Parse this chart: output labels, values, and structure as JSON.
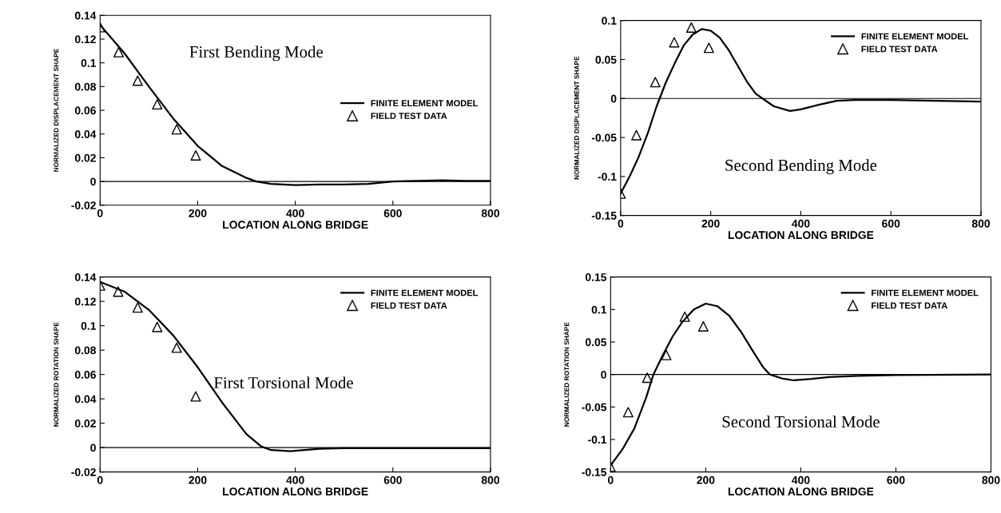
{
  "chart_data": [
    {
      "type": "line",
      "title": "First Bending Mode",
      "xlabel": "LOCATION ALONG BRIDGE",
      "ylabel": "NORMALIZED DISPLACEMENT SHAPE",
      "xlim": [
        0,
        800
      ],
      "xticks": [
        0,
        200,
        400,
        600,
        800
      ],
      "ylim": [
        -0.02,
        0.14
      ],
      "yticks": [
        -0.02,
        0,
        0.02,
        0.04,
        0.06,
        0.08,
        0.1,
        0.12,
        0.14
      ],
      "legend": "center right",
      "grid": false,
      "ref_lines": [
        {
          "axis": "y",
          "value": 0,
          "color": "#000000"
        }
      ],
      "series": [
        {
          "name": "FINITE ELEMENT MODEL",
          "color": "#000000",
          "marker": "none",
          "line_style": "solid",
          "x": [
            0,
            50,
            100,
            150,
            200,
            250,
            300,
            320,
            350,
            400,
            450,
            500,
            550,
            600,
            650,
            700,
            750,
            800
          ],
          "values": [
            0.132,
            0.108,
            0.08,
            0.053,
            0.03,
            0.013,
            0.003,
            0,
            -0.002,
            -0.003,
            -0.0025,
            -0.0025,
            -0.002,
            0,
            0.0005,
            0.001,
            0.0005,
            0.0005
          ]
        },
        {
          "name": "FIELD TEST DATA",
          "type": "scatter",
          "color": "#000000",
          "marker": "triangle",
          "x": [
            0,
            38,
            77,
            117,
            157,
            196
          ],
          "values": [
            0.13,
            0.109,
            0.085,
            0.065,
            0.044,
            0.022
          ]
        }
      ]
    },
    {
      "type": "line",
      "title": "Second Bending Mode",
      "xlabel": "LOCATION ALONG BRIDGE",
      "ylabel": "NORMALIZED DISPLACEMENT SHAPE",
      "xlim": [
        0,
        800
      ],
      "xticks": [
        0,
        200,
        400,
        600,
        800
      ],
      "ylim": [
        -0.15,
        0.1
      ],
      "yticks": [
        -0.15,
        -0.1,
        -0.05,
        0,
        0.05,
        0.1
      ],
      "legend": "top right",
      "grid": false,
      "ref_lines": [
        {
          "axis": "y",
          "value": 0,
          "color": "#000000"
        }
      ],
      "series": [
        {
          "name": "FINITE ELEMENT MODEL",
          "color": "#000000",
          "marker": "none",
          "line_style": "solid",
          "x": [
            0,
            20,
            40,
            60,
            80,
            100,
            120,
            140,
            160,
            180,
            200,
            220,
            240,
            260,
            280,
            300,
            315,
            340,
            376,
            400,
            440,
            480,
            520,
            600,
            700,
            800
          ],
          "values": [
            -0.122,
            -0.1,
            -0.075,
            -0.045,
            -0.01,
            0.02,
            0.045,
            0.068,
            0.082,
            0.089,
            0.087,
            0.078,
            0.062,
            0.042,
            0.022,
            0.006,
            0,
            -0.01,
            -0.016,
            -0.014,
            -0.008,
            -0.003,
            -0.002,
            -0.002,
            -0.003,
            -0.004
          ]
        },
        {
          "name": "FIELD TEST DATA",
          "type": "scatter",
          "color": "#000000",
          "marker": "triangle",
          "x": [
            0,
            35,
            77,
            119,
            157,
            196
          ],
          "values": [
            -0.122,
            -0.047,
            0.021,
            0.072,
            0.091,
            0.065
          ]
        }
      ]
    },
    {
      "type": "line",
      "title": "First Torsional Mode",
      "xlabel": "LOCATION ALONG BRIDGE",
      "ylabel": "NORMALIZED ROTATION SHAPE",
      "xlim": [
        0,
        800
      ],
      "xticks": [
        0,
        200,
        400,
        600,
        800
      ],
      "ylim": [
        -0.02,
        0.14
      ],
      "yticks": [
        -0.02,
        0,
        0.02,
        0.04,
        0.06,
        0.08,
        0.1,
        0.12,
        0.14
      ],
      "legend": "top right",
      "grid": false,
      "ref_lines": [
        {
          "axis": "y",
          "value": 0,
          "color": "#000000"
        }
      ],
      "series": [
        {
          "name": "FINITE ELEMENT MODEL",
          "color": "#000000",
          "marker": "none",
          "line_style": "solid",
          "x": [
            0,
            50,
            100,
            150,
            200,
            250,
            300,
            330,
            350,
            390,
            450,
            500,
            600,
            800
          ],
          "values": [
            0.136,
            0.128,
            0.113,
            0.092,
            0.066,
            0.037,
            0.011,
            0.001,
            -0.002,
            -0.003,
            -0.001,
            -0.0005,
            -0.0005,
            -0.0005
          ]
        },
        {
          "name": "FIELD TEST DATA",
          "type": "scatter",
          "color": "#000000",
          "marker": "triangle",
          "x": [
            0,
            37,
            77,
            117,
            157,
            196
          ],
          "values": [
            0.133,
            0.128,
            0.115,
            0.099,
            0.082,
            0.042
          ]
        }
      ]
    },
    {
      "type": "line",
      "title": "Second Torsional Mode",
      "xlabel": "LOCATION ALONG BRIDGE",
      "ylabel": "NORMALIZED ROTATION SHAPE",
      "xlim": [
        0,
        800
      ],
      "xticks": [
        0,
        200,
        400,
        600,
        800
      ],
      "ylim": [
        -0.15,
        0.15
      ],
      "yticks": [
        -0.15,
        -0.1,
        -0.05,
        0,
        0.05,
        0.1,
        0.15
      ],
      "legend": "top right",
      "grid": false,
      "ref_lines": [
        {
          "axis": "y",
          "value": 0,
          "color": "#000000"
        }
      ],
      "series": [
        {
          "name": "FINITE ELEMENT MODEL",
          "color": "#000000",
          "marker": "none",
          "line_style": "solid",
          "x": [
            0,
            25,
            50,
            75,
            90,
            110,
            130,
            150,
            175,
            200,
            225,
            250,
            275,
            300,
            320,
            335,
            360,
            385,
            420,
            460,
            520,
            600,
            800
          ],
          "values": [
            -0.14,
            -0.115,
            -0.083,
            -0.035,
            0,
            0.03,
            0.058,
            0.08,
            0.1,
            0.109,
            0.105,
            0.09,
            0.065,
            0.035,
            0.012,
            0,
            -0.006,
            -0.009,
            -0.007,
            -0.004,
            -0.002,
            -0.001,
            0
          ]
        },
        {
          "name": "FIELD TEST DATA",
          "type": "scatter",
          "color": "#000000",
          "marker": "triangle",
          "x": [
            0,
            37,
            77,
            117,
            156,
            195
          ],
          "values": [
            -0.142,
            -0.058,
            -0.005,
            0.03,
            0.089,
            0.074
          ]
        }
      ]
    }
  ]
}
